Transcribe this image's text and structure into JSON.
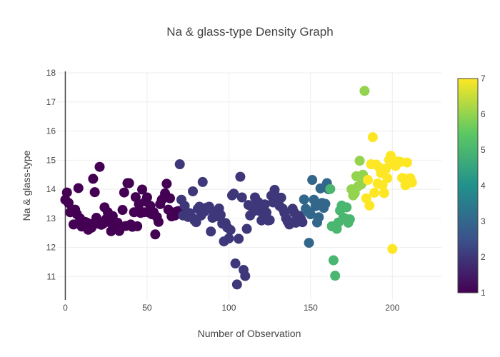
{
  "chart_data": {
    "type": "scatter",
    "title": "Na & glass-type Density Graph",
    "xlabel": "Number of Observation",
    "ylabel": "Na & glass-type",
    "xlim": [
      -5,
      230
    ],
    "ylim": [
      10.2,
      18.05
    ],
    "xticks": [
      0,
      50,
      100,
      150,
      200
    ],
    "yticks": [
      11,
      12,
      13,
      14,
      15,
      16,
      17,
      18
    ],
    "grid": true,
    "colorscale": "Viridis",
    "colorbar": {
      "min": 1,
      "max": 7,
      "ticks": [
        1,
        2,
        3,
        4,
        5,
        6,
        7
      ],
      "placement": "right"
    },
    "colors": {
      "axis": "#444444",
      "grid": "#eeeeee",
      "colorbar_border": "#444444"
    },
    "points": [
      [
        0,
        13.64,
        1
      ],
      [
        1,
        13.89,
        1
      ],
      [
        2,
        13.53,
        1
      ],
      [
        3,
        13.21,
        1
      ],
      [
        4,
        13.27,
        1
      ],
      [
        5,
        12.79,
        1
      ],
      [
        6,
        13.3,
        1
      ],
      [
        7,
        13.15,
        1
      ],
      [
        8,
        14.04,
        1
      ],
      [
        9,
        13.0,
        1
      ],
      [
        10,
        12.72,
        1
      ],
      [
        11,
        12.8,
        1
      ],
      [
        12,
        12.88,
        1
      ],
      [
        13,
        12.86,
        1
      ],
      [
        14,
        12.61,
        1
      ],
      [
        15,
        12.81,
        1
      ],
      [
        16,
        12.68,
        1
      ],
      [
        17,
        14.36,
        1
      ],
      [
        18,
        13.9,
        1
      ],
      [
        19,
        13.02,
        1
      ],
      [
        20,
        12.82,
        1
      ],
      [
        21,
        14.77,
        1
      ],
      [
        22,
        12.78,
        1
      ],
      [
        23,
        12.81,
        1
      ],
      [
        24,
        13.38,
        1
      ],
      [
        25,
        12.98,
        1
      ],
      [
        26,
        13.21,
        1
      ],
      [
        27,
        12.87,
        1
      ],
      [
        28,
        12.56,
        1
      ],
      [
        29,
        13.08,
        1
      ],
      [
        30,
        12.65,
        1
      ],
      [
        31,
        12.84,
        1
      ],
      [
        32,
        12.85,
        1
      ],
      [
        33,
        12.57,
        1
      ],
      [
        34,
        12.69,
        1
      ],
      [
        35,
        13.29,
        1
      ],
      [
        36,
        13.89,
        1
      ],
      [
        37,
        12.74,
        1
      ],
      [
        38,
        14.21,
        1
      ],
      [
        39,
        14.21,
        1
      ],
      [
        40,
        12.79,
        1
      ],
      [
        41,
        12.71,
        1
      ],
      [
        42,
        13.21,
        1
      ],
      [
        43,
        13.73,
        1
      ],
      [
        44,
        12.73,
        1
      ],
      [
        45,
        13.49,
        1
      ],
      [
        46,
        13.19,
        1
      ],
      [
        47,
        13.99,
        1
      ],
      [
        48,
        13.21,
        1
      ],
      [
        49,
        13.58,
        1
      ],
      [
        50,
        13.72,
        1
      ],
      [
        51,
        13.2,
        1
      ],
      [
        52,
        13.43,
        1
      ],
      [
        53,
        13.14,
        1
      ],
      [
        54,
        13.21,
        1
      ],
      [
        55,
        12.45,
        1
      ],
      [
        56,
        13.05,
        1
      ],
      [
        57,
        12.88,
        1
      ],
      [
        58,
        13.49,
        1
      ],
      [
        59,
        13.64,
        1
      ],
      [
        60,
        13.69,
        1
      ],
      [
        61,
        13.86,
        1
      ],
      [
        62,
        14.19,
        1
      ],
      [
        63,
        13.3,
        1
      ],
      [
        64,
        13.69,
        1
      ],
      [
        65,
        13.07,
        1
      ],
      [
        66,
        13.2,
        1
      ],
      [
        67,
        13.1,
        1
      ],
      [
        68,
        13.23,
        1
      ],
      [
        69,
        13.25,
        1
      ],
      [
        70,
        14.86,
        2
      ],
      [
        71,
        13.64,
        2
      ],
      [
        72,
        13.1,
        2
      ],
      [
        73,
        13.43,
        2
      ],
      [
        74,
        13.15,
        2
      ],
      [
        75,
        13.05,
        2
      ],
      [
        76,
        13.18,
        2
      ],
      [
        77,
        13.06,
        2
      ],
      [
        78,
        13.93,
        2
      ],
      [
        79,
        12.93,
        2
      ],
      [
        80,
        12.87,
        2
      ],
      [
        81,
        13.33,
        2
      ],
      [
        82,
        13.4,
        2
      ],
      [
        83,
        13.1,
        2
      ],
      [
        84,
        14.25,
        2
      ],
      [
        85,
        13.23,
        2
      ],
      [
        86,
        13.36,
        2
      ],
      [
        87,
        13.33,
        2
      ],
      [
        88,
        13.4,
        2
      ],
      [
        89,
        12.55,
        2
      ],
      [
        90,
        13.02,
        2
      ],
      [
        91,
        13.17,
        2
      ],
      [
        92,
        13.23,
        2
      ],
      [
        93,
        13.07,
        2
      ],
      [
        94,
        13.34,
        2
      ],
      [
        95,
        13.12,
        2
      ],
      [
        96,
        12.82,
        2
      ],
      [
        97,
        12.21,
        2
      ],
      [
        98,
        12.84,
        2
      ],
      [
        99,
        12.69,
        2
      ],
      [
        100,
        12.31,
        2
      ],
      [
        101,
        12.6,
        2
      ],
      [
        102,
        13.79,
        2
      ],
      [
        103,
        13.85,
        2
      ],
      [
        104,
        11.45,
        2
      ],
      [
        105,
        10.73,
        2
      ],
      [
        106,
        12.3,
        2
      ],
      [
        107,
        14.43,
        2
      ],
      [
        108,
        13.72,
        2
      ],
      [
        109,
        11.23,
        2
      ],
      [
        110,
        11.02,
        2
      ],
      [
        111,
        12.64,
        2
      ],
      [
        112,
        13.46,
        2
      ],
      [
        113,
        13.1,
        2
      ],
      [
        114,
        13.41,
        2
      ],
      [
        115,
        13.24,
        2
      ],
      [
        116,
        13.72,
        2
      ],
      [
        117,
        13.3,
        2
      ],
      [
        118,
        13.56,
        2
      ],
      [
        119,
        13.25,
        2
      ],
      [
        120,
        12.93,
        2
      ],
      [
        121,
        13.23,
        2
      ],
      [
        122,
        13.48,
        2
      ],
      [
        123,
        13.2,
        2
      ],
      [
        124,
        12.93,
        2
      ],
      [
        125,
        12.94,
        2
      ],
      [
        126,
        13.78,
        2
      ],
      [
        127,
        13.55,
        2
      ],
      [
        128,
        13.98,
        2
      ],
      [
        129,
        13.75,
        2
      ],
      [
        130,
        13.7,
        2
      ],
      [
        131,
        13.43,
        2
      ],
      [
        132,
        13.71,
        2
      ],
      [
        133,
        13.33,
        2
      ],
      [
        134,
        13.19,
        2
      ],
      [
        135,
        13.0,
        2
      ],
      [
        136,
        12.89,
        2
      ],
      [
        137,
        12.79,
        2
      ],
      [
        138,
        12.87,
        2
      ],
      [
        139,
        13.33,
        2
      ],
      [
        140,
        13.2,
        2
      ],
      [
        141,
        12.85,
        2
      ],
      [
        142,
        13.0,
        2
      ],
      [
        143,
        13.09,
        2
      ],
      [
        144,
        12.99,
        2
      ],
      [
        145,
        12.87,
        2
      ],
      [
        146,
        13.65,
        3
      ],
      [
        147,
        13.33,
        3
      ],
      [
        148,
        13.24,
        3
      ],
      [
        149,
        12.16,
        3
      ],
      [
        150,
        13.14,
        3
      ],
      [
        151,
        14.32,
        3
      ],
      [
        152,
        13.64,
        3
      ],
      [
        153,
        13.42,
        3
      ],
      [
        154,
        12.86,
        3
      ],
      [
        155,
        13.04,
        3
      ],
      [
        156,
        14.03,
        3
      ],
      [
        157,
        13.53,
        3
      ],
      [
        158,
        13.36,
        3
      ],
      [
        159,
        13.5,
        3
      ],
      [
        160,
        14.21,
        3
      ],
      [
        161,
        14.0,
        3
      ],
      [
        162,
        14.01,
        5
      ],
      [
        163,
        12.73,
        5
      ],
      [
        164,
        11.56,
        5
      ],
      [
        165,
        11.03,
        5
      ],
      [
        166,
        12.64,
        5
      ],
      [
        167,
        12.86,
        5
      ],
      [
        168,
        13.27,
        5
      ],
      [
        169,
        13.44,
        5
      ],
      [
        170,
        13.02,
        5
      ],
      [
        171,
        13.0,
        5
      ],
      [
        172,
        13.38,
        5
      ],
      [
        173,
        12.85,
        5
      ],
      [
        174,
        12.97,
        5
      ],
      [
        175,
        14.0,
        6
      ],
      [
        176,
        13.79,
        6
      ],
      [
        177,
        13.87,
        6
      ],
      [
        178,
        14.45,
        6
      ],
      [
        179,
        14.1,
        6
      ],
      [
        180,
        14.98,
        6
      ],
      [
        181,
        14.17,
        6
      ],
      [
        182,
        14.5,
        6
      ],
      [
        183,
        17.38,
        6
      ],
      [
        184,
        13.69,
        7
      ],
      [
        185,
        14.32,
        7
      ],
      [
        186,
        13.44,
        7
      ],
      [
        187,
        14.86,
        7
      ],
      [
        188,
        15.79,
        7
      ],
      [
        189,
        13.88,
        7
      ],
      [
        190,
        14.85,
        7
      ],
      [
        191,
        14.2,
        7
      ],
      [
        192,
        14.75,
        7
      ],
      [
        193,
        14.56,
        7
      ],
      [
        194,
        14.14,
        7
      ],
      [
        195,
        13.87,
        7
      ],
      [
        196,
        14.7,
        7
      ],
      [
        197,
        14.38,
        7
      ],
      [
        198,
        15.01,
        7
      ],
      [
        199,
        15.15,
        7
      ],
      [
        200,
        11.95,
        7
      ],
      [
        201,
        14.85,
        7
      ],
      [
        202,
        14.8,
        7
      ],
      [
        203,
        14.95,
        7
      ],
      [
        204,
        14.95,
        7
      ],
      [
        205,
        14.94,
        7
      ],
      [
        206,
        14.39,
        7
      ],
      [
        207,
        14.37,
        7
      ],
      [
        208,
        14.14,
        7
      ],
      [
        209,
        14.92,
        7
      ],
      [
        210,
        14.36,
        7
      ],
      [
        211,
        14.38,
        7
      ],
      [
        212,
        14.23,
        7
      ]
    ]
  }
}
